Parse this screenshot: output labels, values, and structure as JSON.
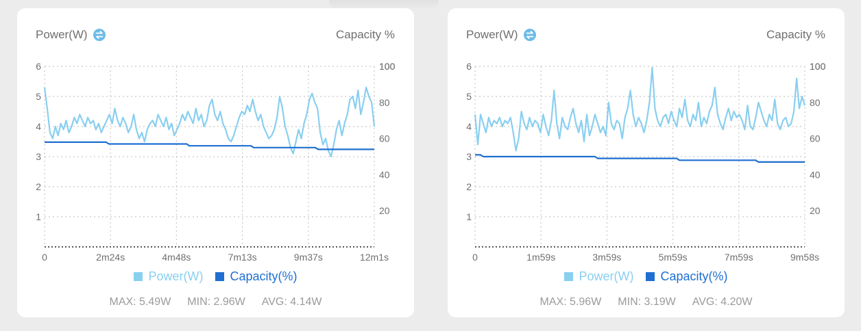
{
  "colors": {
    "power": "#89cff0",
    "capacity": "#1e6fd0",
    "text": "#6f6f6f",
    "stats": "#9a9a9a",
    "grid": "#c8c8c8",
    "icon": "#6cbbe8"
  },
  "icons": {
    "swap": "swap-vertical-icon"
  },
  "charts": [
    {
      "power_label": "Power(W)",
      "capacity_label": "Capacity %",
      "legend": {
        "power": "Power(W)",
        "capacity": "Capacity(%)"
      },
      "stats": {
        "max": "MAX: 5.49W",
        "min": "MIN: 2.96W",
        "avg": "AVG: 4.14W"
      }
    },
    {
      "power_label": "Power(W)",
      "capacity_label": "Capacity %",
      "legend": {
        "power": "Power(W)",
        "capacity": "Capacity(%)"
      },
      "stats": {
        "max": "MAX: 5.96W",
        "min": "MIN: 3.19W",
        "avg": "AVG: 4.20W"
      }
    }
  ],
  "chart_data": [
    {
      "type": "line",
      "x_ticks": [
        "0",
        "2m24s",
        "4m48s",
        "7m13s",
        "9m37s",
        "12m1s"
      ],
      "duration_s": 721,
      "y_left_ticks": [
        "1",
        "2",
        "3",
        "4",
        "5",
        "6"
      ],
      "y_left_range": [
        0,
        6
      ],
      "y_right_ticks": [
        "20",
        "40",
        "60",
        "80",
        "100"
      ],
      "y_right_range": [
        0,
        100
      ],
      "grid": true,
      "legend_position": "bottom",
      "series": [
        {
          "name": "Power(W)",
          "axis": "left",
          "values": [
            5.3,
            4.6,
            3.8,
            3.6,
            4.0,
            3.7,
            4.1,
            3.9,
            4.2,
            3.8,
            4.0,
            4.3,
            4.1,
            4.4,
            4.2,
            4.0,
            4.3,
            4.1,
            4.2,
            3.9,
            4.1,
            3.8,
            4.0,
            4.2,
            4.4,
            4.1,
            4.6,
            4.2,
            4.0,
            4.3,
            4.1,
            3.8,
            4.0,
            4.4,
            3.9,
            3.6,
            3.8,
            3.5,
            3.9,
            4.1,
            4.2,
            4.0,
            4.4,
            4.2,
            4.0,
            4.3,
            3.9,
            4.1,
            3.7,
            3.9,
            4.1,
            4.4,
            4.2,
            4.5,
            4.3,
            4.1,
            4.6,
            4.2,
            4.4,
            4.0,
            4.2,
            4.7,
            4.9,
            4.4,
            4.2,
            4.5,
            4.1,
            3.9,
            3.6,
            3.5,
            3.7,
            4.0,
            4.3,
            4.5,
            4.4,
            4.7,
            4.5,
            4.9,
            4.5,
            4.2,
            4.4,
            4.0,
            3.8,
            3.6,
            3.7,
            3.9,
            4.3,
            5.0,
            4.6,
            4.0,
            3.7,
            3.3,
            3.1,
            3.5,
            3.9,
            3.6,
            4.1,
            4.4,
            4.9,
            5.1,
            4.8,
            4.6,
            3.8,
            3.4,
            3.6,
            3.2,
            3.0,
            3.4,
            3.9,
            4.2,
            3.7,
            4.1,
            4.4,
            4.9,
            5.0,
            4.6,
            5.2,
            4.4,
            4.8,
            5.3,
            5.0,
            4.8,
            4.0
          ]
        },
        {
          "name": "Capacity(%)",
          "axis": "right",
          "values": [
            58,
            58,
            58,
            58,
            58,
            58,
            58,
            58,
            58,
            58,
            58,
            58,
            58,
            58,
            58,
            58,
            58,
            58,
            58,
            58,
            58,
            58,
            58,
            58,
            57,
            57,
            57,
            57,
            57,
            57,
            57,
            57,
            57,
            57,
            57,
            57,
            57,
            57,
            57,
            57,
            57,
            57,
            57,
            57,
            57,
            57,
            57,
            57,
            57,
            57,
            57,
            57,
            57,
            57,
            56,
            56,
            56,
            56,
            56,
            56,
            56,
            56,
            56,
            56,
            56,
            56,
            56,
            56,
            56,
            56,
            56,
            56,
            56,
            56,
            56,
            56,
            56,
            56,
            55,
            55,
            55,
            55,
            55,
            55,
            55,
            55,
            55,
            55,
            55,
            55,
            55,
            55,
            55,
            55,
            55,
            55,
            55,
            55,
            55,
            55,
            55,
            55,
            54,
            54,
            54,
            54,
            54,
            54,
            54,
            54,
            54,
            54,
            54,
            54,
            54,
            54,
            54,
            54,
            54,
            54,
            54,
            54,
            54,
            54
          ]
        }
      ]
    },
    {
      "type": "line",
      "x_ticks": [
        "0",
        "1m59s",
        "3m59s",
        "5m59s",
        "7m59s",
        "9m58s"
      ],
      "duration_s": 598,
      "y_left_ticks": [
        "1",
        "2",
        "3",
        "4",
        "5",
        "6"
      ],
      "y_left_range": [
        0,
        6
      ],
      "y_right_ticks": [
        "20",
        "40",
        "60",
        "80",
        "100"
      ],
      "y_right_range": [
        0,
        100
      ],
      "grid": true,
      "legend_position": "bottom",
      "series": [
        {
          "name": "Power(W)",
          "axis": "left",
          "values": [
            4.4,
            3.4,
            4.4,
            4.1,
            3.8,
            4.3,
            4.0,
            4.2,
            4.1,
            4.3,
            4.0,
            4.2,
            4.1,
            4.3,
            3.8,
            3.2,
            3.6,
            4.5,
            4.1,
            3.9,
            4.3,
            4.0,
            4.2,
            4.1,
            3.8,
            4.4,
            4.0,
            3.7,
            4.2,
            5.2,
            4.1,
            3.6,
            4.3,
            4.0,
            3.9,
            4.3,
            4.6,
            4.1,
            3.8,
            4.2,
            3.5,
            4.4,
            3.7,
            4.0,
            4.4,
            4.1,
            3.8,
            4.0,
            3.7,
            4.8,
            4.1,
            3.9,
            4.2,
            4.1,
            3.6,
            4.3,
            4.6,
            5.2,
            4.4,
            4.0,
            4.3,
            4.1,
            3.8,
            4.2,
            4.8,
            5.96,
            4.6,
            4.2,
            4.0,
            4.3,
            4.4,
            4.1,
            4.5,
            4.2,
            4.0,
            4.6,
            4.3,
            4.9,
            4.2,
            4.0,
            4.4,
            4.2,
            4.8,
            4.0,
            4.3,
            4.1,
            4.5,
            4.7,
            5.3,
            4.4,
            4.1,
            3.9,
            4.3,
            4.6,
            4.2,
            4.5,
            4.3,
            4.4,
            4.2,
            3.9,
            4.7,
            4.0,
            3.9,
            4.3,
            4.8,
            4.5,
            4.2,
            4.0,
            4.4,
            4.2,
            4.9,
            4.1,
            3.9,
            4.2,
            4.3,
            4.0,
            4.1,
            4.5,
            5.6,
            4.6,
            5.0,
            4.7
          ]
        },
        {
          "name": "Capacity(%)",
          "axis": "right",
          "values": [
            51,
            51,
            51,
            50,
            50,
            50,
            50,
            50,
            50,
            50,
            50,
            50,
            50,
            50,
            50,
            50,
            50,
            50,
            50,
            50,
            50,
            50,
            50,
            50,
            50,
            50,
            50,
            50,
            50,
            50,
            50,
            50,
            50,
            50,
            50,
            50,
            50,
            50,
            50,
            50,
            50,
            50,
            50,
            50,
            50,
            49,
            49,
            49,
            49,
            49,
            49,
            49,
            49,
            49,
            49,
            49,
            49,
            49,
            49,
            49,
            49,
            49,
            49,
            49,
            49,
            49,
            49,
            49,
            49,
            49,
            49,
            49,
            49,
            49,
            49,
            48,
            48,
            48,
            48,
            48,
            48,
            48,
            48,
            48,
            48,
            48,
            48,
            48,
            48,
            48,
            48,
            48,
            48,
            48,
            48,
            48,
            48,
            48,
            48,
            48,
            48,
            48,
            48,
            48,
            47,
            47,
            47,
            47,
            47,
            47,
            47,
            47,
            47,
            47,
            47,
            47,
            47,
            47,
            47,
            47,
            47,
            47
          ]
        }
      ]
    }
  ]
}
